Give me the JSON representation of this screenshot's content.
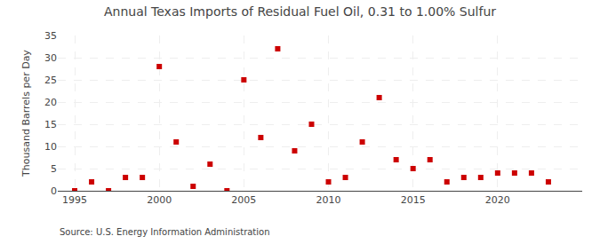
{
  "chart_data": {
    "type": "scatter",
    "title": "Annual Texas Imports of Residual Fuel Oil, 0.31 to 1.00% Sulfur",
    "y_label": "Thousand Barrels per Day",
    "annotations": [
      "Source: U.S. Energy Information Administration"
    ],
    "x": [
      1995,
      1996,
      1997,
      1998,
      1999,
      2000,
      2001,
      2002,
      2003,
      2004,
      2005,
      2006,
      2007,
      2008,
      2009,
      2010,
      2011,
      2012,
      2013,
      2014,
      2015,
      2016,
      2017,
      2018,
      2019,
      2020,
      2021,
      2022,
      2023
    ],
    "values": [
      0,
      2,
      0,
      3,
      3,
      28,
      11,
      1,
      6,
      0,
      25,
      12,
      32,
      9,
      15,
      2,
      3,
      11,
      21,
      7,
      5,
      7,
      2,
      3,
      3,
      4,
      4,
      4,
      2
    ],
    "color": "#cc0000",
    "marker": "square",
    "xlim": [
      1994.0,
      2025.0
    ],
    "xticks": [
      1995,
      2000,
      2005,
      2010,
      2015,
      2020
    ],
    "ylim": [
      0,
      35
    ],
    "yticks": [
      0,
      5,
      10,
      15,
      20,
      25,
      30,
      35
    ],
    "grid": true
  }
}
